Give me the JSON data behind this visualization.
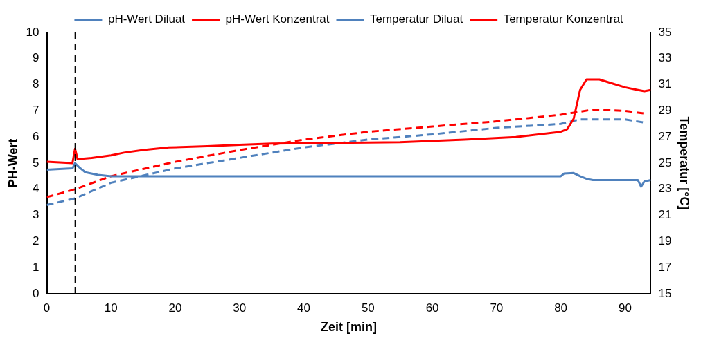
{
  "chart_data": {
    "type": "line",
    "xlabel": "Zeit [min]",
    "ylabel": "PH-Wert",
    "y2label": "Temperatur [°C]",
    "xlim": [
      0,
      94
    ],
    "xticks": [
      0,
      10,
      20,
      30,
      40,
      50,
      60,
      70,
      80,
      90
    ],
    "ylim": [
      0,
      10
    ],
    "yticks": [
      0,
      1,
      2,
      3,
      4,
      5,
      6,
      7,
      8,
      9,
      10
    ],
    "y2lim": [
      15,
      35
    ],
    "y2ticks": [
      15,
      17,
      19,
      21,
      23,
      25,
      27,
      29,
      31,
      33,
      35
    ],
    "grid": false,
    "legend": "top",
    "marker": "none",
    "ref_lines": [
      {
        "axis": "x",
        "value": 4.4,
        "color": "#000000",
        "line_style": "dashed"
      }
    ],
    "series": [
      {
        "name": "pH-Wert Diluat",
        "color": "#4f81bd",
        "line_style": "solid",
        "x": [
          0,
          4,
          4.4,
          5,
          6,
          8,
          10,
          20,
          40,
          60,
          80,
          80.5,
          82,
          83,
          84,
          85,
          92,
          92.5,
          93,
          94
        ],
        "values": [
          4.75,
          4.8,
          5.0,
          4.85,
          4.65,
          4.55,
          4.5,
          4.5,
          4.5,
          4.5,
          4.5,
          4.6,
          4.62,
          4.5,
          4.4,
          4.35,
          4.35,
          4.1,
          4.3,
          4.35
        ]
      },
      {
        "name": "pH-Wert Konzentrat",
        "color": "#ff0000",
        "line_style": "solid",
        "x": [
          0,
          4,
          4.4,
          4.8,
          7,
          10,
          12,
          15,
          19,
          25,
          30,
          35,
          55,
          65,
          73,
          80,
          81,
          82,
          83,
          84,
          86,
          88,
          90,
          92,
          93,
          94
        ],
        "values": [
          5.05,
          5.0,
          5.55,
          5.15,
          5.2,
          5.3,
          5.4,
          5.5,
          5.6,
          5.65,
          5.7,
          5.75,
          5.8,
          5.9,
          6.0,
          6.2,
          6.3,
          6.7,
          7.8,
          8.2,
          8.2,
          8.05,
          7.9,
          7.8,
          7.75,
          7.8
        ]
      },
      {
        "name": "Temperatur Diluat",
        "color": "#4f81bd",
        "line_style": "dashed",
        "axis": "y2",
        "x": [
          0,
          4.4,
          10,
          20,
          30,
          40,
          50,
          60,
          70,
          80,
          83,
          90,
          93
        ],
        "values": [
          21.8,
          22.3,
          23.5,
          24.6,
          25.4,
          26.2,
          26.8,
          27.2,
          27.7,
          28.0,
          28.35,
          28.35,
          28.1
        ]
      },
      {
        "name": "Temperatur Konzentrat",
        "color": "#ff0000",
        "line_style": "dashed",
        "axis": "y2",
        "x": [
          0,
          4.4,
          10,
          20,
          30,
          40,
          50,
          60,
          70,
          80,
          85,
          90,
          93
        ],
        "values": [
          22.4,
          23.0,
          24.0,
          25.1,
          26.0,
          26.8,
          27.4,
          27.8,
          28.2,
          28.7,
          29.1,
          29.0,
          28.8
        ]
      }
    ]
  }
}
